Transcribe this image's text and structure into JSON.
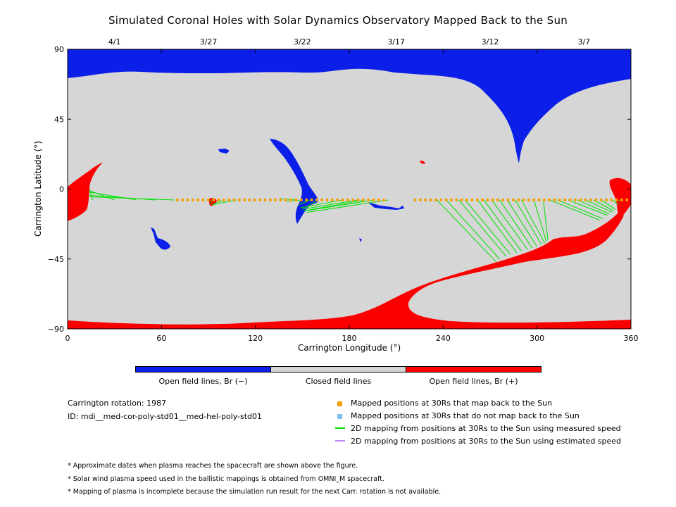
{
  "chart_data": {
    "type": "heatmap",
    "title": "Simulated Coronal Holes with Solar Dynamics Observatory Mapped Back to the Sun",
    "xlabel": "Carrington Longitude (°)",
    "ylabel": "Carrington Latitude (°)",
    "xlim": [
      0,
      360
    ],
    "ylim": [
      -90,
      90
    ],
    "x_ticks": [
      0,
      60,
      120,
      180,
      240,
      300,
      360
    ],
    "x_tick_labels": [
      "0",
      "60",
      "120",
      "180",
      "240",
      "300",
      "360"
    ],
    "y_ticks": [
      90,
      45,
      0,
      -45,
      -90
    ],
    "y_tick_labels": [
      "90",
      "45",
      "0",
      "−45",
      "−90"
    ],
    "top_axis": {
      "positions": [
        30,
        90,
        150,
        210,
        270,
        330
      ],
      "labels": [
        "4/1",
        "3/27",
        "3/22",
        "3/17",
        "3/12",
        "3/7"
      ]
    },
    "colors": {
      "open_negative": "#0b1fe8",
      "closed": "#d6d6d6",
      "open_positive": "#fb0000",
      "mapped": "#f5a200",
      "not_mapped": "#7fbff0",
      "measured": "#00e000",
      "estimated": "#bf84ef"
    },
    "colorbar_labels": [
      "Open field lines, Br (−)",
      "Closed field lines",
      "Open field lines, Br (+)"
    ],
    "mapped_positions_latitude": -7,
    "mapped_positions_longitude_ranges": [
      [
        70,
        205
      ],
      [
        222,
        358
      ]
    ],
    "mapping_lines": [
      [
        16,
        -7,
        14,
        0
      ],
      [
        30,
        -7,
        14,
        -1
      ],
      [
        44,
        -7,
        14,
        -2
      ],
      [
        56,
        -7,
        14,
        -4
      ],
      [
        68,
        -7,
        14,
        -5
      ],
      [
        92,
        -7,
        91,
        -9
      ],
      [
        100,
        -7,
        92,
        -10
      ],
      [
        108,
        -7,
        93,
        -10
      ],
      [
        146,
        -7,
        136,
        -6
      ],
      [
        150,
        -7,
        140,
        -8
      ],
      [
        155,
        -7,
        148,
        -10
      ],
      [
        160,
        -7,
        152,
        -12
      ],
      [
        176,
        -7,
        149,
        -12
      ],
      [
        186,
        -7,
        150,
        -13
      ],
      [
        190,
        -7,
        151,
        -14
      ],
      [
        196,
        -7,
        152,
        -14
      ],
      [
        205,
        -7,
        153,
        -15
      ],
      [
        236,
        -7,
        274,
        -47
      ],
      [
        242,
        -7,
        276,
        -45
      ],
      [
        250,
        -7,
        280,
        -43
      ],
      [
        254,
        -7,
        283,
        -42
      ],
      [
        262,
        -7,
        287,
        -41
      ],
      [
        266,
        -7,
        290,
        -40
      ],
      [
        271,
        -7,
        294,
        -39
      ],
      [
        276,
        -7,
        297,
        -38
      ],
      [
        281,
        -7,
        300,
        -37
      ],
      [
        286,
        -7,
        303,
        -36
      ],
      [
        290,
        -7,
        305,
        -35
      ],
      [
        298,
        -7,
        306,
        -34
      ],
      [
        304,
        -7,
        307,
        -33
      ],
      [
        308,
        -7,
        340,
        -20
      ],
      [
        313,
        -7,
        342,
        -19
      ],
      [
        320,
        -7,
        345,
        -17
      ],
      [
        326,
        -7,
        346,
        -16
      ],
      [
        331,
        -7,
        348,
        -15
      ],
      [
        336,
        -7,
        349,
        -14
      ],
      [
        341,
        -7,
        350,
        -13
      ],
      [
        348,
        -7,
        352,
        -10
      ],
      [
        353,
        -7,
        352,
        -8
      ]
    ]
  },
  "legend": {
    "mapped": "Mapped positions at 30Rs that map back to the Sun",
    "not_mapped": "Mapped positions at 30Rs that do not map back to the Sun",
    "measured": "2D mapping from positions at 30Rs to the Sun using measured speed",
    "estimated": "2D mapping from positions at 30Rs to the Sun using estimated speed"
  },
  "info": {
    "rotation": "Carrington rotation: 1987",
    "id": "ID: mdi__med-cor-poly-std01__med-hel-poly-std01"
  },
  "notes": [
    "* Approximate dates when plasma reaches the spacecraft are shown above the figure.",
    "* Solar wind plasma speed used in the ballistic mappings is obtained from OMNI_M spacecraft.",
    "* Mapping of plasma is incomplete because the simulation run result for the next Carr. rotation is not available."
  ]
}
